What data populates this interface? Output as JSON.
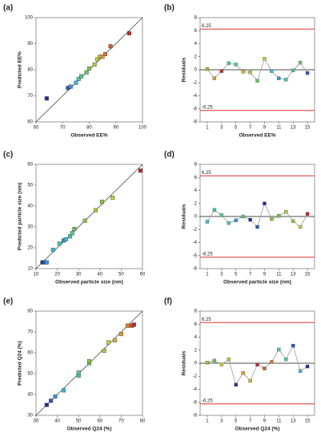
{
  "chart_data": [
    {
      "type": "scatter",
      "panel_label": "(a)",
      "xlabel": "Observed EE%",
      "ylabel": "Predicted EE%",
      "x": [
        64,
        72,
        73,
        75,
        76,
        77,
        79,
        80,
        82,
        83,
        84,
        85,
        86,
        88,
        95
      ],
      "values": [
        69,
        73,
        73.5,
        75,
        76.5,
        77.5,
        79,
        80.5,
        82,
        84,
        85,
        85,
        86,
        89,
        94
      ],
      "colors": [
        "#1f2f9a",
        "#2a55c4",
        "#3a8fd9",
        "#40b8d8",
        "#46c9b0",
        "#55c98a",
        "#6ac45e",
        "#8cc63f",
        "#aacb3a",
        "#c6cc38",
        "#d9b833",
        "#e09a2e",
        "#e07a2a",
        "#d6552a",
        "#c0282a"
      ],
      "xlim": [
        60,
        100
      ],
      "xticks": [
        60,
        70,
        80,
        90,
        100
      ],
      "ylim": [
        60,
        100
      ],
      "yticks": [
        60,
        70,
        80,
        90,
        100
      ]
    },
    {
      "type": "residual",
      "panel_label": "(b)",
      "xlabel": "Observed EE%",
      "ylabel": "Residuals",
      "x": [
        1,
        2,
        3,
        4,
        5,
        6,
        7,
        8,
        9,
        10,
        11,
        12,
        13,
        14,
        15
      ],
      "values": [
        0.1,
        -1.3,
        -0.2,
        1.0,
        0.8,
        -0.3,
        -0.4,
        -1.7,
        1.7,
        -0.2,
        -1.3,
        -1.5,
        -0.1,
        1.1,
        -0.5
      ],
      "colors": [
        "#8cc63f",
        "#e09a2e",
        "#c0282a",
        "#46c9b0",
        "#55c98a",
        "#d9b833",
        "#aacb3a",
        "#6ac45e",
        "#c6cc38",
        "#40b8d8",
        "#3a8fd9",
        "#46c9b0",
        "#55c98a",
        "#6ac45e",
        "#2a55c4"
      ],
      "line_color": "#9a9a9a",
      "ref_lines": [
        6.25,
        -6.25
      ],
      "ref_color": "#e03030",
      "xlim": [
        0,
        16
      ],
      "xticks": [
        1,
        3,
        5,
        7,
        9,
        11,
        13,
        15
      ],
      "ylim": [
        -8,
        8
      ],
      "yticks": [
        -8,
        -6,
        -4,
        -2,
        0,
        2,
        4,
        6,
        8
      ]
    },
    {
      "type": "scatter",
      "panel_label": "(c)",
      "xlabel": "Observed particle size (nm)",
      "ylabel": "Predicted particle size (nm)",
      "x": [
        13,
        14,
        15,
        18,
        21,
        23,
        24,
        26,
        27,
        28,
        33,
        38,
        41,
        46,
        59
      ],
      "values": [
        13,
        13,
        13,
        19,
        22,
        23.5,
        24,
        25.5,
        27,
        29,
        33,
        38,
        42,
        44,
        57
      ],
      "colors": [
        "#1f2f9a",
        "#2a55c4",
        "#3a8fd9",
        "#40b8d8",
        "#46c9b0",
        "#3a8fd9",
        "#40b8d8",
        "#46c9b0",
        "#55c98a",
        "#6ac45e",
        "#8cc63f",
        "#aacb3a",
        "#8cc63f",
        "#c6cc38",
        "#c0282a"
      ],
      "xlim": [
        10,
        60
      ],
      "xticks": [
        10,
        20,
        30,
        40,
        50,
        60
      ],
      "ylim": [
        10,
        60
      ],
      "yticks": [
        10,
        20,
        30,
        40,
        50,
        60
      ]
    },
    {
      "type": "residual",
      "panel_label": "(d)",
      "xlabel": "Observed particle size (nm)",
      "ylabel": "Residuals",
      "x": [
        1,
        2,
        3,
        4,
        5,
        6,
        7,
        8,
        9,
        10,
        11,
        12,
        13,
        14,
        15
      ],
      "values": [
        -0.8,
        1.0,
        0.2,
        -1.0,
        -0.6,
        0.0,
        -0.5,
        -1.6,
        2.0,
        -0.4,
        0.1,
        0.7,
        -0.7,
        -1.6,
        0.4
      ],
      "colors": [
        "#40b8d8",
        "#46c9b0",
        "#55c98a",
        "#46c9b0",
        "#3a8fd9",
        "#55c98a",
        "#1f2f9a",
        "#2a55c4",
        "#1f2f9a",
        "#8cc63f",
        "#6ac45e",
        "#aacb3a",
        "#8cc63f",
        "#c6cc38",
        "#c0282a"
      ],
      "line_color": "#9a9a9a",
      "ref_lines": [
        6.25,
        -6.25
      ],
      "ref_color": "#e03030",
      "xlim": [
        0,
        16
      ],
      "xticks": [
        1,
        3,
        5,
        7,
        9,
        11,
        13,
        15
      ],
      "ylim": [
        -8,
        8
      ],
      "yticks": [
        -8,
        -6,
        -4,
        -2,
        0,
        2,
        4,
        6,
        8
      ]
    },
    {
      "type": "scatter",
      "panel_label": "(e)",
      "xlabel": "Observed Q24 (%)",
      "ylabel": "Predicted Q24 (%)",
      "x": [
        35,
        37,
        39,
        43,
        50,
        50,
        55,
        55,
        62,
        64,
        67,
        70,
        73,
        75,
        76
      ],
      "values": [
        35,
        37,
        39,
        42,
        49,
        50.5,
        55,
        56,
        61,
        65,
        66,
        69,
        73,
        73,
        73.5
      ],
      "colors": [
        "#1f2f9a",
        "#2a55c4",
        "#3a8fd9",
        "#40b8d8",
        "#46c9b0",
        "#55c98a",
        "#6ac45e",
        "#8cc63f",
        "#aacb3a",
        "#c6cc38",
        "#d9b833",
        "#e09a2e",
        "#e07a2a",
        "#d6552a",
        "#c0282a"
      ],
      "xlim": [
        30,
        80
      ],
      "xticks": [
        30,
        40,
        50,
        60,
        70,
        80
      ],
      "ylim": [
        30,
        80
      ],
      "yticks": [
        30,
        40,
        50,
        60,
        70,
        80
      ]
    },
    {
      "type": "residual",
      "panel_label": "(f)",
      "xlabel": "Observed Q24 (%)",
      "ylabel": "Residuals",
      "x": [
        1,
        2,
        3,
        4,
        5,
        6,
        7,
        8,
        9,
        10,
        11,
        12,
        13,
        14,
        15
      ],
      "values": [
        0.1,
        0.4,
        -0.2,
        0.6,
        -3.3,
        -1.5,
        -2.7,
        -0.2,
        -0.8,
        0.2,
        2.1,
        0.6,
        2.7,
        -1.2,
        -0.5
      ],
      "colors": [
        "#8cc63f",
        "#6ac45e",
        "#c6cc38",
        "#aacb3a",
        "#1f2f9a",
        "#e09a2e",
        "#d9b833",
        "#c0282a",
        "#d6552a",
        "#e07a2a",
        "#46c9b0",
        "#55c98a",
        "#2a55c4",
        "#40b8d8",
        "#1f2f9a"
      ],
      "line_color": "#9a9a9a",
      "ref_lines": [
        6.25,
        -6.25
      ],
      "ref_color": "#e03030",
      "xlim": [
        0,
        16
      ],
      "xticks": [
        1,
        3,
        5,
        7,
        9,
        11,
        13,
        15
      ],
      "ylim": [
        -8,
        8
      ],
      "yticks": [
        -8,
        -6,
        -4,
        -2,
        0,
        2,
        4,
        6,
        8
      ]
    }
  ]
}
